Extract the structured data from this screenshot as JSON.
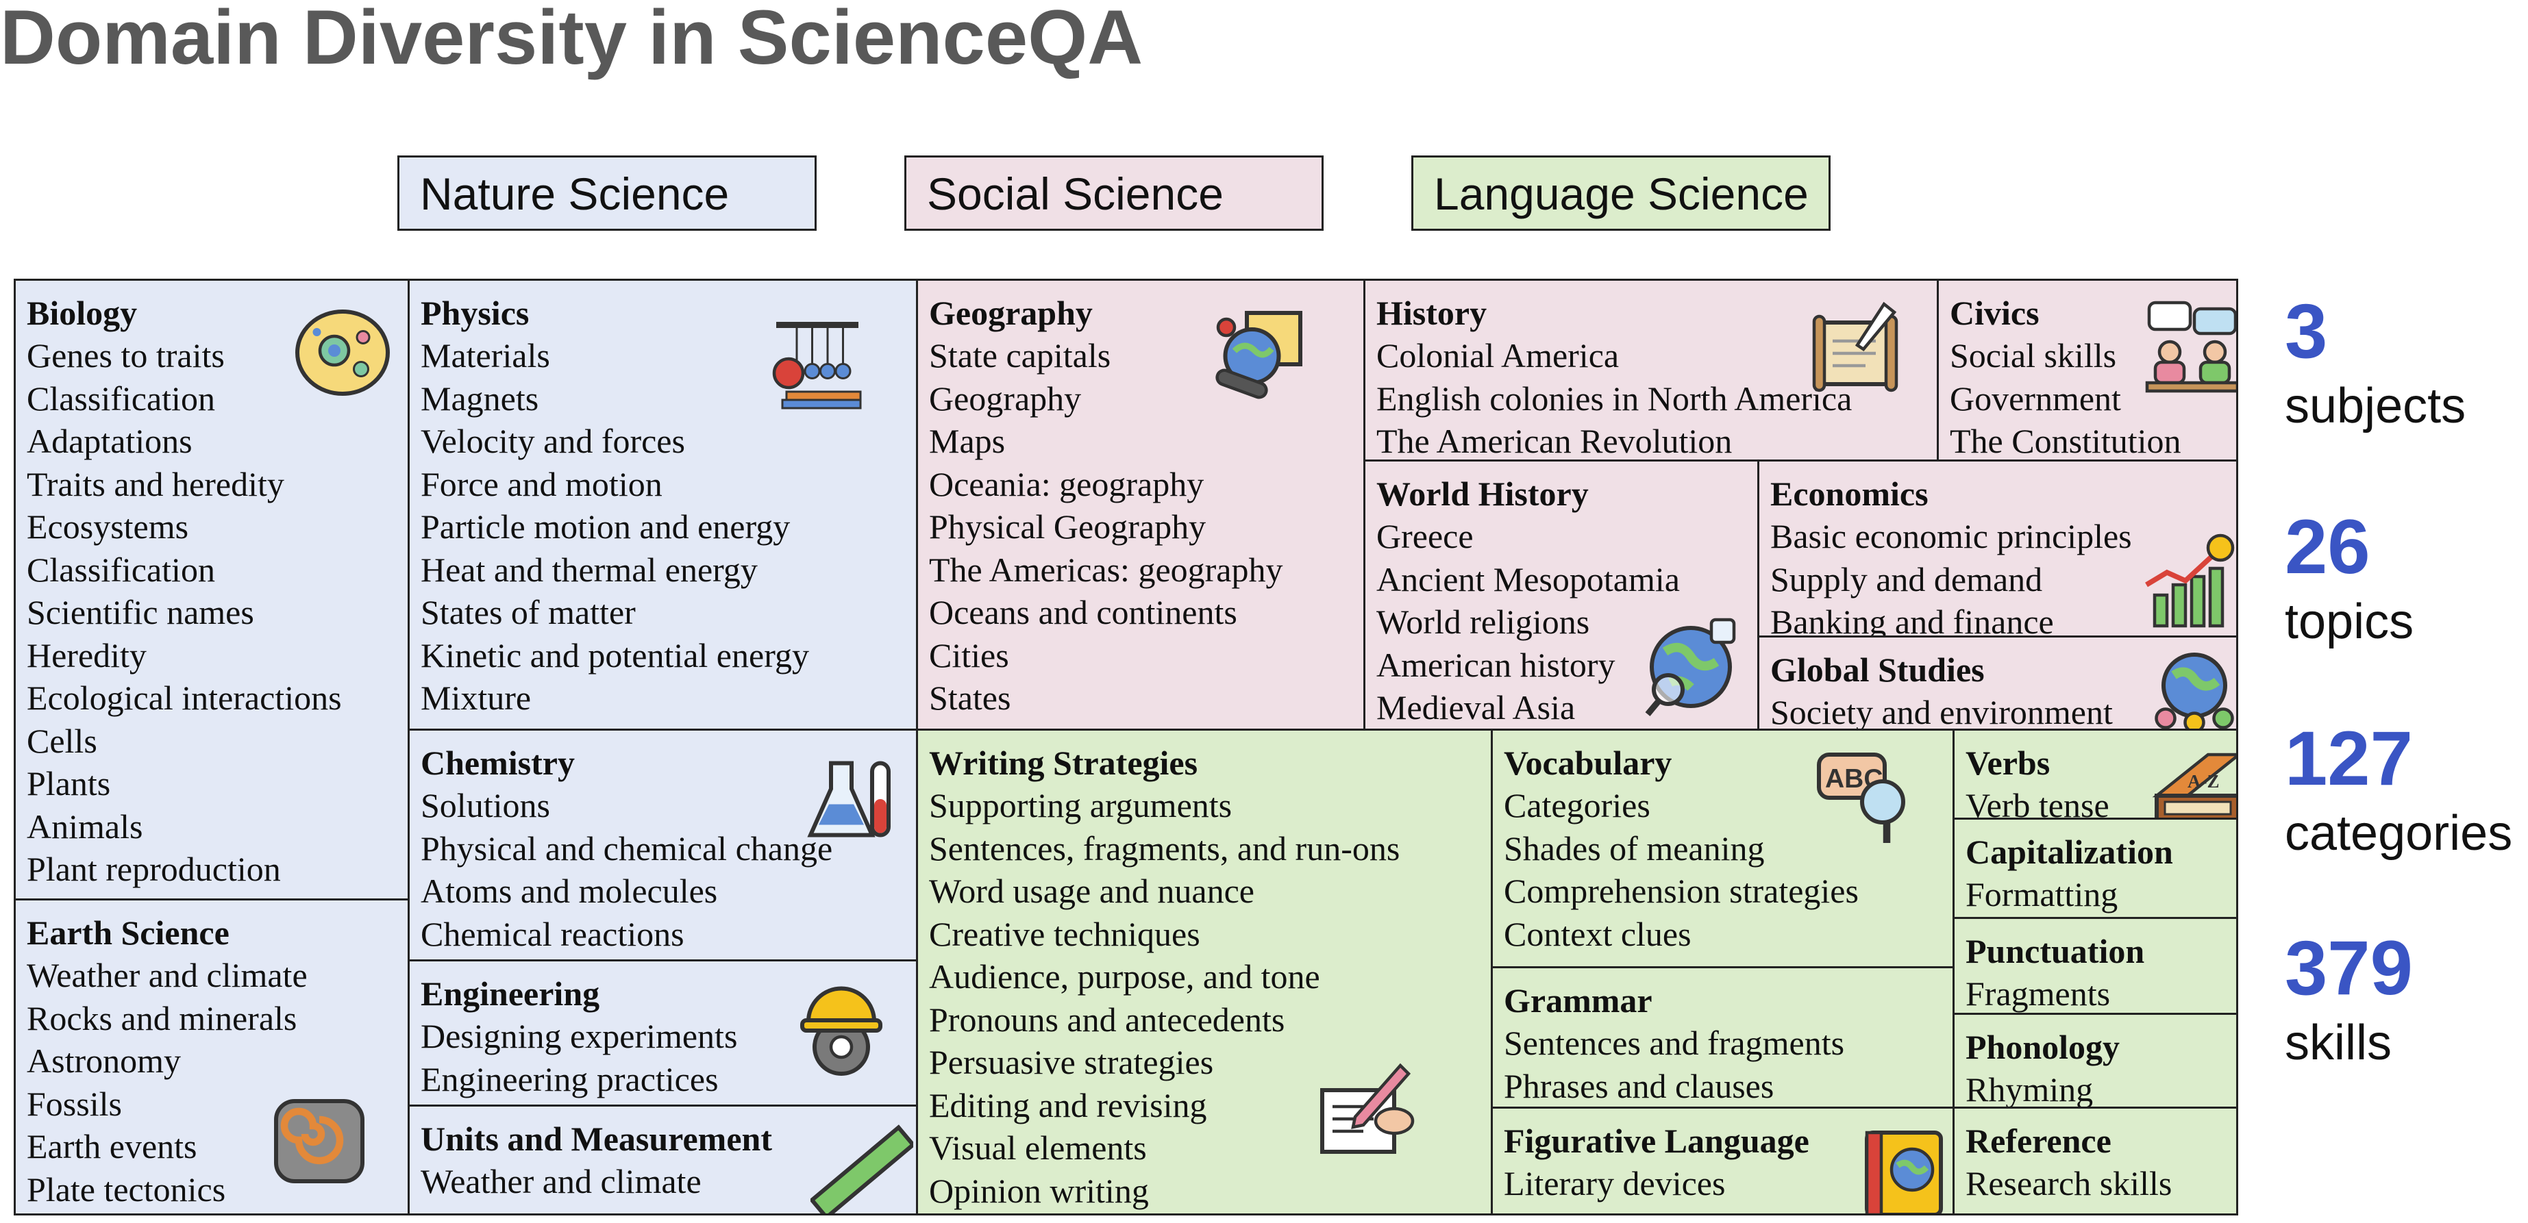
{
  "title": "Domain Diversity in ScienceQA",
  "legend": [
    "Nature Science",
    "Social Science",
    "Language Science"
  ],
  "colors": {
    "nature": "#e3e9f6",
    "social": "#f0e0e6",
    "language": "#dcedcc",
    "stat": "#3a55c4"
  },
  "cells": [
    {
      "id": "biology",
      "title": "Biology",
      "icon": "cell-icon",
      "items": [
        "Genes to traits",
        "Classification",
        "Adaptations",
        "Traits and heredity",
        "Ecosystems",
        "Classification",
        "Scientific names",
        "Heredity",
        "Ecological interactions",
        "Cells",
        "Plants",
        "Animals",
        "Plant reproduction"
      ]
    },
    {
      "id": "earth-science",
      "title": "Earth Science",
      "icon": "fossil-icon",
      "items": [
        "Weather and climate",
        "Rocks and minerals",
        "Astronomy",
        "Fossils",
        "Earth events",
        "Plate tectonics"
      ]
    },
    {
      "id": "physics",
      "title": "Physics",
      "icon": "newtons-cradle-icon",
      "items": [
        "Materials",
        "Magnets",
        "Velocity and forces",
        "Force and motion",
        "Particle motion and energy",
        "Heat and thermal energy",
        "States of matter",
        "Kinetic and potential energy",
        "Mixture"
      ]
    },
    {
      "id": "chemistry",
      "title": "Chemistry",
      "icon": "flask-icon",
      "items": [
        "Solutions",
        "Physical and chemical change",
        "Atoms and molecules",
        "Chemical reactions"
      ]
    },
    {
      "id": "engineering",
      "title": "Engineering",
      "icon": "hardhat-gear-icon",
      "items": [
        "Designing experiments",
        "Engineering practices"
      ]
    },
    {
      "id": "units",
      "title": "Units and Measurement",
      "icon": "ruler-icon",
      "items": [
        "Weather and climate"
      ]
    },
    {
      "id": "geography",
      "title": "Geography",
      "icon": "globe-map-icon",
      "items": [
        "State capitals",
        "Geography",
        "Maps",
        "Oceania: geography",
        "Physical Geography",
        "The Americas: geography",
        "Oceans and continents",
        "Cities",
        "States"
      ]
    },
    {
      "id": "history",
      "title": "History",
      "icon": "scroll-icon",
      "items": [
        "Colonial America",
        "English colonies in North America",
        "The American Revolution"
      ]
    },
    {
      "id": "civics",
      "title": "Civics",
      "icon": "discussion-icon",
      "items": [
        "Social skills",
        "Government",
        "The Constitution"
      ]
    },
    {
      "id": "world-history",
      "title": "World History",
      "icon": "globe-search-icon",
      "items": [
        "Greece",
        "Ancient Mesopotamia",
        "World religions",
        "American history",
        "Medieval Asia"
      ]
    },
    {
      "id": "economics",
      "title": "Economics",
      "icon": "growth-chart-icon",
      "items": [
        "Basic economic principles",
        "Supply and demand",
        "Banking and finance"
      ]
    },
    {
      "id": "global-studies",
      "title": "Global Studies",
      "icon": "community-globe-icon",
      "items": [
        "Society and environment"
      ]
    },
    {
      "id": "writing",
      "title": "Writing Strategies",
      "icon": "writing-icon",
      "items": [
        "Supporting arguments",
        "Sentences, fragments, and run-ons",
        "Word usage and nuance",
        "Creative techniques",
        "Audience, purpose, and tone",
        "Pronouns and antecedents",
        "Persuasive strategies",
        "Editing and revising",
        "Visual elements",
        "Opinion writing"
      ]
    },
    {
      "id": "vocabulary",
      "title": "Vocabulary",
      "icon": "abc-magnifier-icon",
      "items": [
        "Categories",
        "Shades of meaning",
        "Comprehension strategies",
        "Context clues"
      ]
    },
    {
      "id": "grammar",
      "title": "Grammar",
      "icon": "",
      "items": [
        "Sentences and fragments",
        "Phrases and clauses"
      ]
    },
    {
      "id": "figurative",
      "title": "Figurative Language",
      "icon": "globe-book-icon",
      "items": [
        "Literary devices"
      ]
    },
    {
      "id": "verbs",
      "title": "Verbs",
      "icon": "dictionary-icon",
      "items": [
        "Verb tense"
      ]
    },
    {
      "id": "capitalization",
      "title": "Capitalization",
      "icon": "",
      "items": [
        "Formatting"
      ]
    },
    {
      "id": "punctuation",
      "title": "Punctuation",
      "icon": "",
      "items": [
        "Fragments"
      ]
    },
    {
      "id": "phonology",
      "title": "Phonology",
      "icon": "",
      "items": [
        "Rhyming"
      ]
    },
    {
      "id": "reference",
      "title": "Reference",
      "icon": "",
      "items": [
        "Research skills"
      ]
    }
  ],
  "stats": [
    {
      "value": "3",
      "label": "subjects"
    },
    {
      "value": "26",
      "label": "topics"
    },
    {
      "value": "127",
      "label": "categories"
    },
    {
      "value": "379",
      "label": "skills"
    }
  ]
}
